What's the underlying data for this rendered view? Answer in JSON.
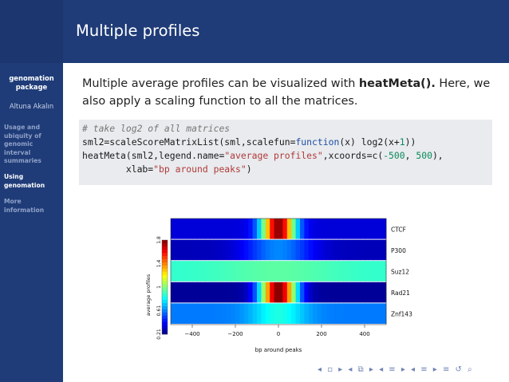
{
  "sidebar": {
    "title": "genomation package",
    "author": "Altuna Akalın",
    "items": [
      {
        "label": "Usage and ubiquity of genomic interval summaries",
        "active": false
      },
      {
        "label": "Using genomation",
        "active": true
      },
      {
        "label": "More information",
        "active": false
      }
    ]
  },
  "header": {
    "title": "Multiple profiles"
  },
  "intro": {
    "text_before": "Multiple average profiles can be visualized with ",
    "function_name": "heatMeta().",
    "text_after": " Here, we also apply a scaling function to all the matrices."
  },
  "code": {
    "line1": "# take log2 of all matrices",
    "line2_a": "sml2=scaleScoreMatrixList(sml,scalefun=",
    "line2_kw": "function",
    "line2_b": "(x) log2(x+",
    "line2_num": "1",
    "line2_c": "))",
    "line3_a": "heatMeta(sml2,legend.name=",
    "line3_str": "\"average profiles\"",
    "line3_b": ",xcoords=c(",
    "line3_num1": "-500",
    "line3_c": ", ",
    "line3_num2": "500",
    "line3_d": "),",
    "line4_a": "        xlab=",
    "line4_str": "\"bp around peaks\"",
    "line4_b": ")"
  },
  "chart_data": {
    "type": "heatmap",
    "rows": [
      "CTCF",
      "P300",
      "Suz12",
      "Rad21",
      "Znf143"
    ],
    "x_ticks": [
      -400,
      -200,
      0,
      200,
      400
    ],
    "xlim": [
      -500,
      500
    ],
    "xlabel": "bp around peaks",
    "legend": {
      "name": "average profiles",
      "ticks": [
        "0.21",
        "0.61",
        "1",
        "1.4",
        "1.8"
      ],
      "range": [
        0.21,
        1.8
      ]
    },
    "profiles": [
      {
        "name": "CTCF",
        "peak": 1.78,
        "base": 0.35,
        "width": 55
      },
      {
        "name": "P300",
        "peak": 0.62,
        "base": 0.3,
        "width": 110
      },
      {
        "name": "Suz12",
        "peak": 0.95,
        "base": 0.88,
        "width": 200
      },
      {
        "name": "Rad21",
        "peak": 1.8,
        "base": 0.25,
        "width": 60
      },
      {
        "name": "Znf143",
        "peak": 0.85,
        "base": 0.6,
        "width": 90
      }
    ]
  },
  "nav": {
    "symbols": "◂ ▫ ▸ ◂ ⧉ ▸ ◂ ≡ ▸ ◂ ≡ ▸ ≡ ↺ ⌕"
  }
}
